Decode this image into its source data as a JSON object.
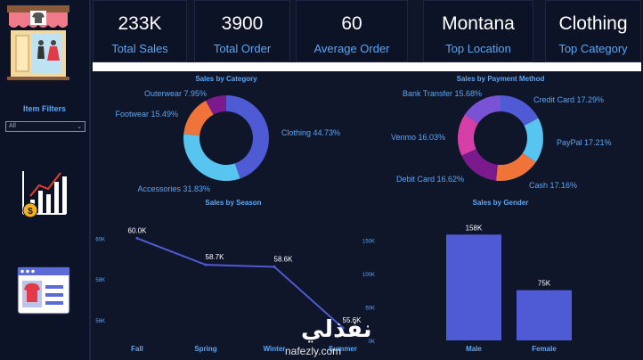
{
  "kpis": [
    {
      "value": "233K",
      "label": "Total Sales"
    },
    {
      "value": "3900",
      "label": "Total Order"
    },
    {
      "value": "60",
      "label": "Average Order"
    },
    {
      "value": "Montana",
      "label": "Top Location"
    },
    {
      "value": "Clothing",
      "label": "Top Category"
    }
  ],
  "sidebar": {
    "filter_title": "Item Filters",
    "filter_value": "All",
    "icons": [
      "store-front-icon",
      "bar-chart-coin-icon",
      "browser-shirt-icon"
    ]
  },
  "watermark": {
    "arabic": "نفذلي",
    "latin": "nafezly.com"
  },
  "chart_data": [
    {
      "type": "pie",
      "title": "Sales by Category",
      "slices": [
        {
          "label": "Clothing 44.73%",
          "value": 44.73,
          "color": "#4f5bd5"
        },
        {
          "label": "Accessories 31.83%",
          "value": 31.83,
          "color": "#58c4f0"
        },
        {
          "label": "Footwear 15.49%",
          "value": 15.49,
          "color": "#f0743a"
        },
        {
          "label": "Outerwear 7.95%",
          "value": 7.95,
          "color": "#7b1a8c"
        }
      ]
    },
    {
      "type": "pie",
      "title": "Sales by Payment Method",
      "slices": [
        {
          "label": "Credit Card 17.29%",
          "value": 17.29,
          "color": "#4f5bd5"
        },
        {
          "label": "PayPal 17.21%",
          "value": 17.21,
          "color": "#58c4f0"
        },
        {
          "label": "Cash 17.16%",
          "value": 17.16,
          "color": "#f0743a"
        },
        {
          "label": "Debit Card 16.62%",
          "value": 16.62,
          "color": "#7b1a8c"
        },
        {
          "label": "Venmo 16.03%",
          "value": 16.03,
          "color": "#d63fa8"
        },
        {
          "label": "Bank Transfer 15.68%",
          "value": 15.68,
          "color": "#7a52d6"
        }
      ]
    },
    {
      "type": "line",
      "title": "Sales by Season",
      "categories": [
        "Fall",
        "Spring",
        "Winter",
        "Summer"
      ],
      "values": [
        60000,
        58700,
        58600,
        55600
      ],
      "data_labels": [
        "60.0K",
        "58.7K",
        "58.6K",
        "55.6K"
      ],
      "yticks": [
        {
          "v": 60000,
          "t": "60K"
        },
        {
          "v": 58000,
          "t": "58K"
        },
        {
          "v": 56000,
          "t": "56K"
        }
      ],
      "ylim": [
        55600,
        60500
      ],
      "color": "#4f5bd5"
    },
    {
      "type": "bar",
      "title": "Sales by Gender",
      "categories": [
        "Male",
        "Female"
      ],
      "values": [
        158000,
        75000
      ],
      "data_labels": [
        "158K",
        "75K"
      ],
      "yticks": [
        {
          "v": 150000,
          "t": "150K"
        },
        {
          "v": 100000,
          "t": "100K"
        },
        {
          "v": 50000,
          "t": "50K"
        },
        {
          "v": 0,
          "t": "0K"
        }
      ],
      "ylim": [
        0,
        165000
      ],
      "color": "#4f5bd5"
    }
  ]
}
